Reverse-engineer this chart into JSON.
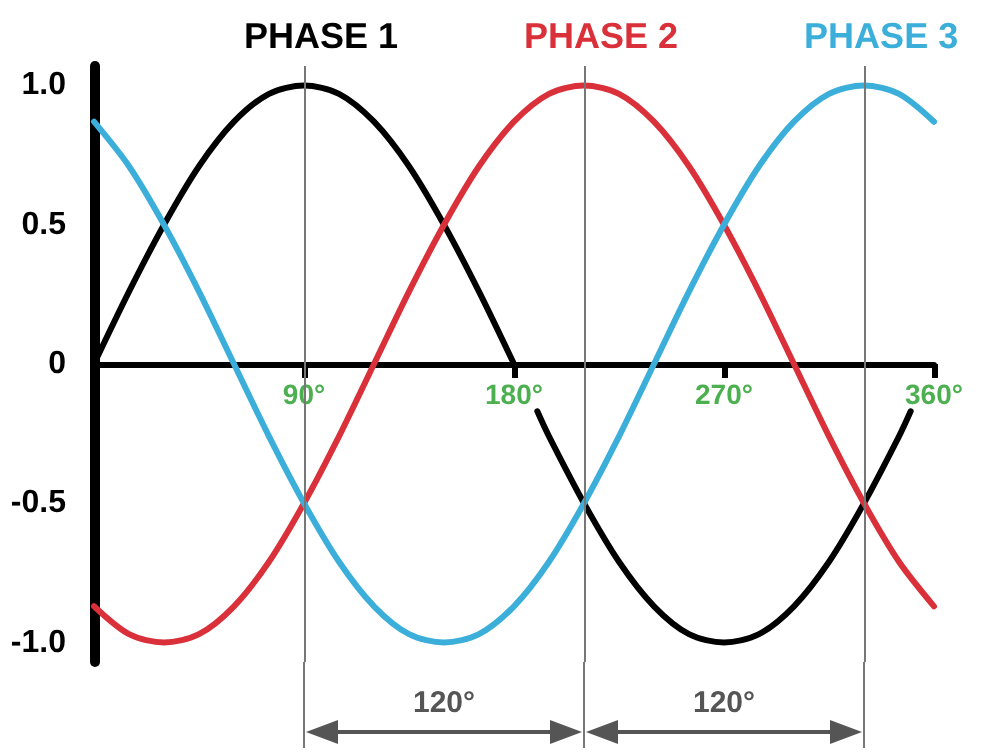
{
  "chart_data": {
    "type": "line",
    "xlim": [
      0,
      360
    ],
    "xticks": [
      {
        "value": 90,
        "label": "90°"
      },
      {
        "value": 180,
        "label": "180°"
      },
      {
        "value": 270,
        "label": "270°"
      },
      {
        "value": 360,
        "label": "360°"
      }
    ],
    "ylim": [
      -1.07,
      1.07
    ],
    "yticks": [
      {
        "value": 1,
        "label": "1.0"
      },
      0.5,
      0,
      -0.5,
      {
        "value": -1,
        "label": "-1.0"
      }
    ],
    "grid": false,
    "legend": "top",
    "marker": "none",
    "line_style": "solid",
    "series": [
      {
        "name": "PHASE 1",
        "color": "#000000",
        "x": [
          0,
          15,
          30,
          45,
          60,
          75,
          90,
          105,
          120,
          135,
          150,
          165,
          180,
          185,
          190,
          195,
          210,
          225,
          240,
          255,
          270,
          285,
          300,
          315,
          330,
          345,
          350
        ],
        "values": [
          0,
          0.26,
          0.5,
          0.71,
          0.87,
          0.97,
          1,
          0.97,
          0.87,
          0.71,
          0.5,
          0.26,
          0,
          null,
          -0.17,
          -0.26,
          -0.5,
          -0.71,
          -0.87,
          -0.97,
          -1,
          -0.97,
          -0.87,
          -0.71,
          -0.5,
          -0.26,
          -0.17
        ]
      },
      {
        "name": "PHASE 2",
        "color": "#d9303a",
        "x": [
          0,
          15,
          30,
          45,
          60,
          75,
          90,
          105,
          120,
          135,
          150,
          165,
          180,
          195,
          210,
          225,
          240,
          255,
          270,
          285,
          300,
          315,
          330,
          345,
          360
        ],
        "values": [
          -0.87,
          -0.97,
          -1,
          -0.97,
          -0.87,
          -0.71,
          -0.5,
          -0.26,
          0,
          0.26,
          0.5,
          0.71,
          0.87,
          0.97,
          1,
          0.97,
          0.87,
          0.71,
          0.5,
          0.26,
          0,
          -0.26,
          -0.5,
          -0.71,
          -0.87
        ]
      },
      {
        "name": "PHASE 3",
        "color": "#3bafda",
        "x": [
          0,
          15,
          30,
          45,
          60,
          75,
          90,
          105,
          120,
          135,
          150,
          165,
          180,
          195,
          210,
          225,
          240,
          255,
          270,
          285,
          300,
          315,
          330,
          345,
          360
        ],
        "values": [
          0.87,
          0.71,
          0.5,
          0.26,
          0,
          -0.26,
          -0.5,
          -0.71,
          -0.87,
          -0.97,
          -1,
          -0.97,
          -0.87,
          -0.71,
          -0.5,
          -0.26,
          0,
          0.26,
          0.5,
          0.71,
          0.87,
          0.97,
          1,
          0.97,
          0.87
        ]
      }
    ],
    "ref_lines": [
      {
        "axis": "x",
        "value": 90,
        "color": "#777777"
      },
      {
        "axis": "x",
        "value": 210,
        "color": "#777777"
      },
      {
        "axis": "x",
        "value": 330,
        "color": "#777777"
      }
    ],
    "annotations": [
      "120°",
      "120°"
    ]
  }
}
